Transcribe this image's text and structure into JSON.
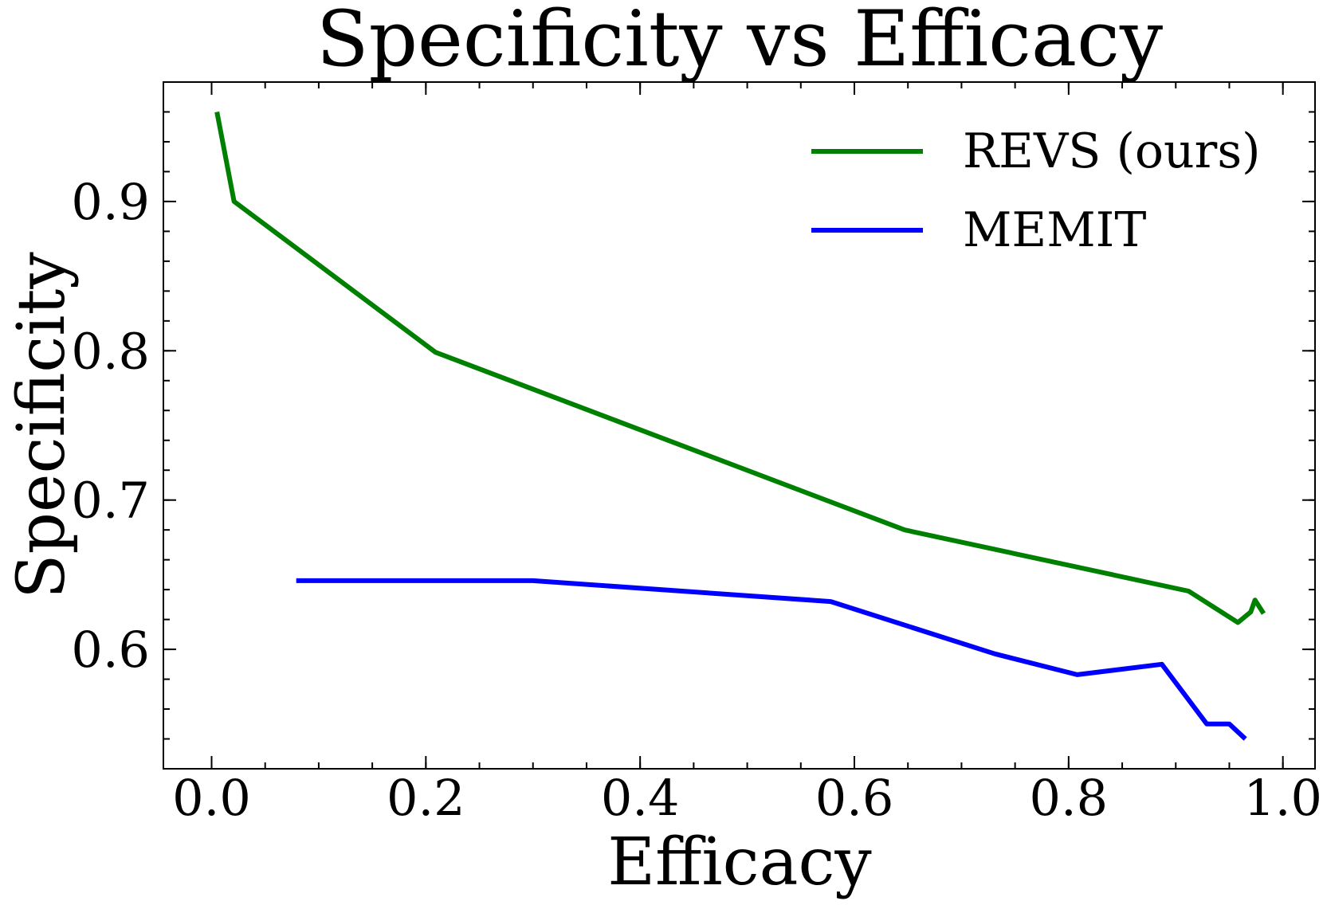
{
  "chart_data": {
    "type": "line",
    "title": "Specificity vs Efficacy",
    "xlabel": "Efficacy",
    "ylabel": "Specificity",
    "xlim": [
      -0.045,
      1.03
    ],
    "ylim": [
      0.52,
      0.98
    ],
    "xticks": [
      0.0,
      0.2,
      0.4,
      0.6,
      0.8,
      1.0
    ],
    "xtick_labels": [
      "0.0",
      "0.2",
      "0.4",
      "0.6",
      "0.8",
      "1.0"
    ],
    "yticks": [
      0.6,
      0.7,
      0.8,
      0.9
    ],
    "ytick_labels": [
      "0.6",
      "0.7",
      "0.8",
      "0.9"
    ],
    "x_minor_step": 0.05,
    "y_minor_step": 0.02,
    "grid": false,
    "legend_position": "top-right",
    "series": [
      {
        "name": "REVS (ours)",
        "color": "#008000",
        "x": [
          0.005,
          0.021,
          0.209,
          0.647,
          0.912,
          0.958,
          0.97,
          0.974,
          0.982
        ],
        "y": [
          0.96,
          0.9,
          0.799,
          0.68,
          0.639,
          0.618,
          0.625,
          0.633,
          0.624
        ]
      },
      {
        "name": "MEMIT",
        "color": "#0000ff",
        "x": [
          0.079,
          0.3,
          0.578,
          0.731,
          0.808,
          0.887,
          0.929,
          0.95,
          0.965
        ],
        "y": [
          0.646,
          0.646,
          0.632,
          0.597,
          0.583,
          0.59,
          0.55,
          0.55,
          0.54
        ]
      }
    ]
  }
}
